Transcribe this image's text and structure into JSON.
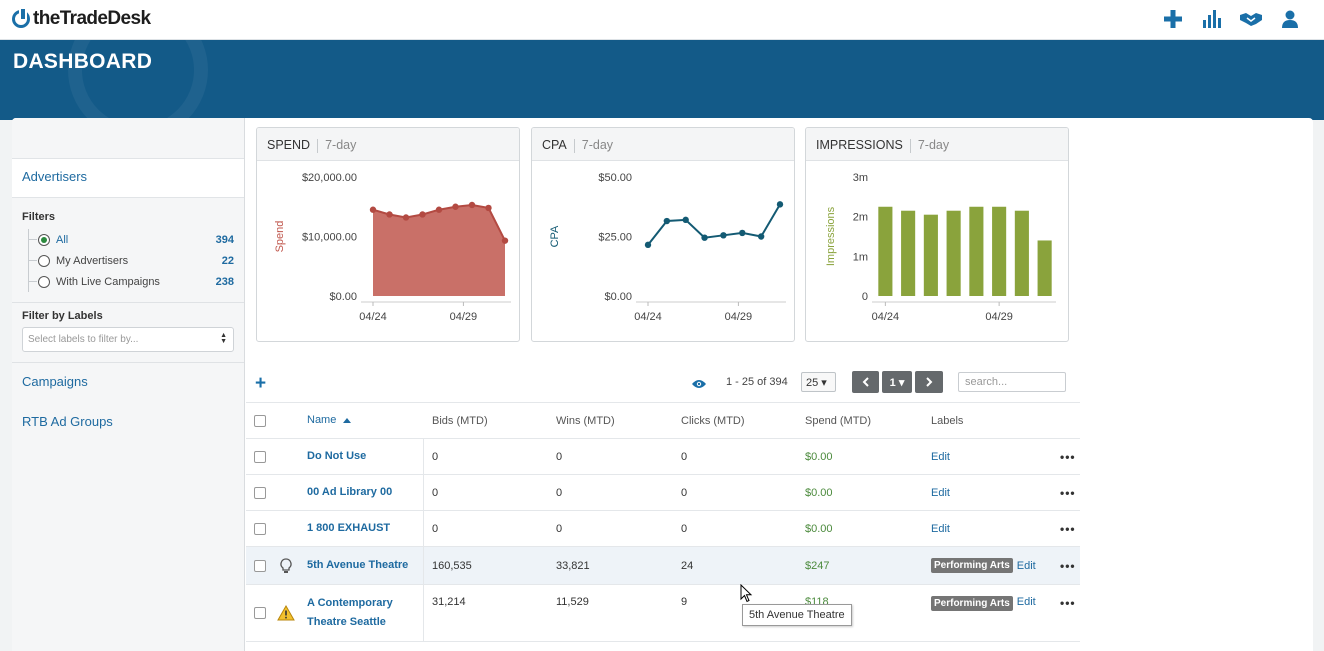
{
  "app": {
    "logo_text": "theTradeDesk"
  },
  "topbar": {
    "icons": [
      "plus-icon",
      "bar-chart-icon",
      "handshake-icon",
      "user-icon"
    ]
  },
  "header": {
    "title": "DASHBOARD"
  },
  "sidebar": {
    "active_item": "Advertisers",
    "filters_heading": "Filters",
    "filters": [
      {
        "label": "All",
        "count": "394",
        "selected": true
      },
      {
        "label": "My Advertisers",
        "count": "22",
        "selected": false
      },
      {
        "label": "With Live Campaigns",
        "count": "238",
        "selected": false
      }
    ],
    "labels_heading": "Filter by Labels",
    "labels_placeholder": "Select labels to filter by...",
    "links": [
      "Campaigns",
      "RTB Ad Groups"
    ]
  },
  "panels": [
    {
      "title": "SPEND",
      "period": "7-day"
    },
    {
      "title": "CPA",
      "period": "7-day"
    },
    {
      "title": "IMPRESSIONS",
      "period": "7-day"
    }
  ],
  "chart_data": [
    {
      "type": "area",
      "title": "SPEND",
      "ylabel": "Spend",
      "x_ticks": [
        "04/24",
        "04/29"
      ],
      "y_ticks": [
        "$20,000.00",
        "$10,000.00",
        "$0.00"
      ],
      "ylim": [
        0,
        20000
      ],
      "color": "#c0574d",
      "values": [
        14500,
        13700,
        13200,
        13700,
        14500,
        15000,
        15300,
        14800,
        9300
      ]
    },
    {
      "type": "line",
      "title": "CPA",
      "ylabel": "CPA",
      "x_ticks": [
        "04/24",
        "04/29"
      ],
      "y_ticks": [
        "$50.00",
        "$25.00",
        "$0.00"
      ],
      "ylim": [
        0,
        50
      ],
      "color": "#135a73",
      "values": [
        21.5,
        31.5,
        32,
        24.5,
        25.5,
        26.5,
        25,
        38.5
      ]
    },
    {
      "type": "bar",
      "title": "IMPRESSIONS",
      "ylabel": "Impressions",
      "x_ticks": [
        "04/24",
        "04/29"
      ],
      "y_ticks": [
        "3m",
        "2m",
        "1m",
        "0"
      ],
      "ylim": [
        0,
        3000000
      ],
      "color": "#8aa33c",
      "values": [
        2250000,
        2150000,
        2050000,
        2150000,
        2250000,
        2250000,
        2150000,
        1400000
      ]
    }
  ],
  "toolbar": {
    "range_text": "1 - 25 of 394",
    "page_size": "25 ▾",
    "page_current": "1 ▾",
    "search_placeholder": "search..."
  },
  "table": {
    "headers": {
      "name": "Name",
      "bids": "Bids (MTD)",
      "wins": "Wins (MTD)",
      "clicks": "Clicks (MTD)",
      "spend": "Spend (MTD)",
      "labels": "Labels"
    },
    "edit_label": "Edit",
    "more_label": "•••",
    "rows": [
      {
        "name": "Do Not Use",
        "bids": "0",
        "wins": "0",
        "clicks": "0",
        "spend": "$0.00",
        "tag": "",
        "icon": ""
      },
      {
        "name": "00 Ad Library 00",
        "bids": "0",
        "wins": "0",
        "clicks": "0",
        "spend": "$0.00",
        "tag": "",
        "icon": ""
      },
      {
        "name": "1 800 EXHAUST",
        "bids": "0",
        "wins": "0",
        "clicks": "0",
        "spend": "$0.00",
        "tag": "",
        "icon": ""
      },
      {
        "name": "5th Avenue Theatre",
        "bids": "160,535",
        "wins": "33,821",
        "clicks": "24",
        "spend": "$247",
        "tag": "Performing Arts",
        "icon": "lightbulb-icon"
      },
      {
        "name": "A Contemporary Theatre Seattle",
        "bids": "31,214",
        "wins": "11,529",
        "clicks": "9",
        "spend": "$118",
        "tag": "Performing Arts",
        "icon": "warning-icon"
      }
    ]
  },
  "tooltip": {
    "text": "5th Avenue Theatre"
  }
}
